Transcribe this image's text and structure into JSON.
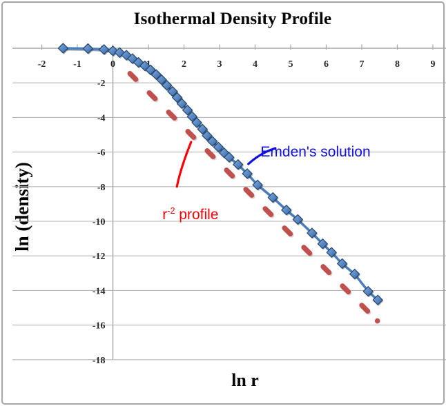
{
  "chart_data": {
    "type": "line",
    "title": "Isothermal Density Profile",
    "xlabel": "ln r",
    "ylabel": "ln (density)",
    "xlim": [
      -2,
      9
    ],
    "ylim": [
      -18,
      0
    ],
    "x_ticks": [
      -2,
      -1,
      0,
      1,
      2,
      3,
      4,
      5,
      6,
      7,
      8,
      9
    ],
    "y_ticks": [
      0,
      -2,
      -4,
      -6,
      -8,
      -10,
      -12,
      -14,
      -16,
      -18
    ],
    "grid": "horizontal",
    "legend_position": "none",
    "colors": {
      "emden_line": "#4a7ebb",
      "marker_fill": "#5585c4",
      "marker_border": "#27496d",
      "r2_line": "#c0504d",
      "emden_label": "#0f0fe0",
      "r2_label": "#fb0006",
      "axis": "#a6a6a6",
      "gridline": "#b5b5b5"
    },
    "series": [
      {
        "name": "Emden's solution",
        "type": "line+markers",
        "marker": "diamond",
        "points": [
          [
            -1.4,
            0.0
          ],
          [
            -0.7,
            -0.02
          ],
          [
            -0.25,
            -0.07
          ],
          [
            0.0,
            -0.15
          ],
          [
            0.19,
            -0.25
          ],
          [
            0.38,
            -0.4
          ],
          [
            0.55,
            -0.6
          ],
          [
            0.72,
            -0.82
          ],
          [
            0.9,
            -1.02
          ],
          [
            1.06,
            -1.25
          ],
          [
            1.22,
            -1.52
          ],
          [
            1.37,
            -1.82
          ],
          [
            1.52,
            -2.15
          ],
          [
            1.68,
            -2.5
          ],
          [
            1.81,
            -2.85
          ],
          [
            1.94,
            -3.2
          ],
          [
            2.1,
            -3.58
          ],
          [
            2.23,
            -3.95
          ],
          [
            2.36,
            -4.3
          ],
          [
            2.52,
            -4.68
          ],
          [
            2.65,
            -5.05
          ],
          [
            2.8,
            -5.38
          ],
          [
            2.97,
            -5.72
          ],
          [
            3.13,
            -6.05
          ],
          [
            3.27,
            -6.3
          ],
          [
            3.52,
            -6.72
          ],
          [
            3.78,
            -7.25
          ],
          [
            4.07,
            -7.9
          ],
          [
            4.5,
            -8.63
          ],
          [
            4.88,
            -9.35
          ],
          [
            5.2,
            -9.9
          ],
          [
            5.6,
            -10.68
          ],
          [
            5.9,
            -11.3
          ],
          [
            6.15,
            -11.8
          ],
          [
            6.45,
            -12.45
          ],
          [
            6.8,
            -13.05
          ],
          [
            7.18,
            -14.05
          ],
          [
            7.45,
            -14.55
          ]
        ]
      },
      {
        "name": "r^-2 profile",
        "type": "dashed-line",
        "slope": -2,
        "points": [
          [
            0.48,
            -1.46
          ],
          [
            7.44,
            -15.76
          ]
        ]
      }
    ],
    "annotations": {
      "emden": {
        "text": "Emden's solution",
        "color": "#0f0fe0",
        "label_x": 3.7,
        "label_y": -4.68,
        "arrow": {
          "x1": 4.57,
          "y1": -5.78,
          "cx": 4.15,
          "cy": -6.05,
          "x2": 3.81,
          "y2": -6.69
        }
      },
      "r2": {
        "pre": "r",
        "sup": "-2",
        "post": " profile",
        "color": "#fb0006",
        "label_x": 0.94,
        "label_y": -8.3,
        "arrow": {
          "x1": 1.8,
          "y1": -8.0,
          "cx": 1.91,
          "cy": -6.89,
          "x2": 2.2,
          "y2": -5.42
        }
      }
    }
  }
}
